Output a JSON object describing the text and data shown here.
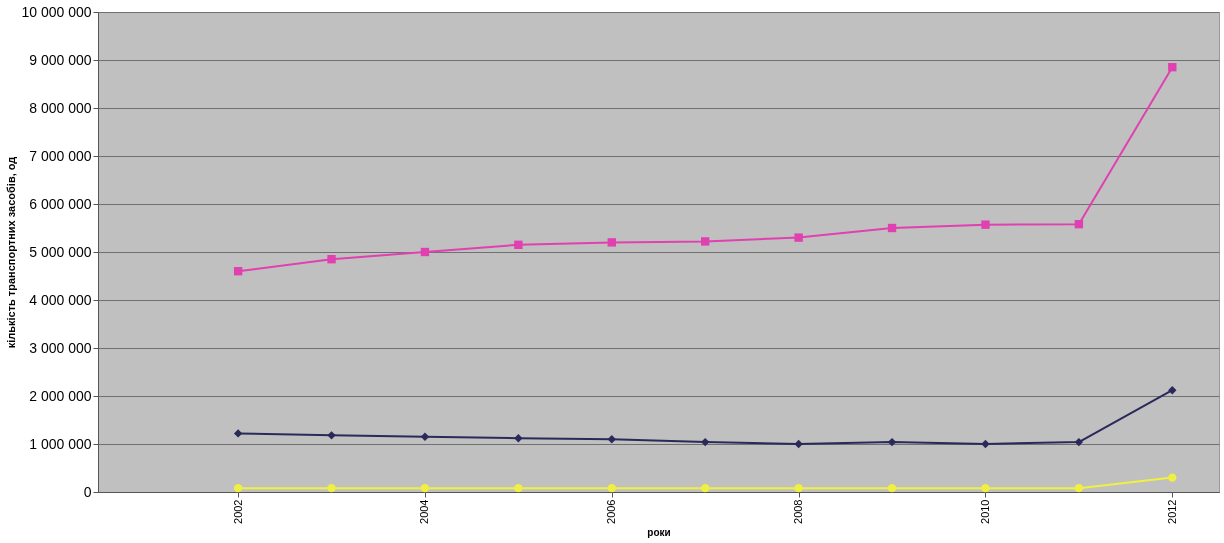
{
  "chart_data": {
    "type": "line",
    "xlabel": "роки",
    "ylabel": "кількість транспортних засобів, од",
    "x": [
      2002,
      2003,
      2004,
      2005,
      2006,
      2007,
      2008,
      2009,
      2010,
      2011,
      2012
    ],
    "xlim": [
      2000.5,
      2012.5
    ],
    "xticks": [
      2002,
      2004,
      2006,
      2008,
      2010,
      2012
    ],
    "ylim": [
      0,
      10000000
    ],
    "yticks": [
      0,
      {
        "value": 1000000,
        "label": "1 000 000"
      },
      {
        "value": 2000000,
        "label": "2 000 000"
      },
      {
        "value": 3000000,
        "label": "3 000 000"
      },
      {
        "value": 4000000,
        "label": "4 000 000"
      },
      {
        "value": 5000000,
        "label": "5 000 000"
      },
      {
        "value": 6000000,
        "label": "6 000 000"
      },
      {
        "value": 7000000,
        "label": "7 000 000"
      },
      {
        "value": 8000000,
        "label": "8 000 000"
      },
      {
        "value": 9000000,
        "label": "9 000 000"
      },
      {
        "value": 10000000,
        "label": "10 000 000"
      }
    ],
    "grid": "y",
    "series": [
      {
        "color": "#e040b0",
        "marker": "square",
        "values": [
          4600000,
          4850000,
          5000000,
          5150000,
          5200000,
          5220000,
          5300000,
          5500000,
          5570000,
          5580000,
          8850000
        ]
      },
      {
        "color": "#2a2a5a",
        "marker": "diamond",
        "values": [
          1220000,
          1180000,
          1150000,
          1120000,
          1100000,
          1040000,
          1000000,
          1040000,
          1000000,
          1040000,
          2120000
        ]
      },
      {
        "color": "#f0f040",
        "marker": "circle",
        "values": [
          80000,
          80000,
          80000,
          80000,
          80000,
          80000,
          80000,
          80000,
          80000,
          80000,
          300000
        ]
      }
    ]
  }
}
